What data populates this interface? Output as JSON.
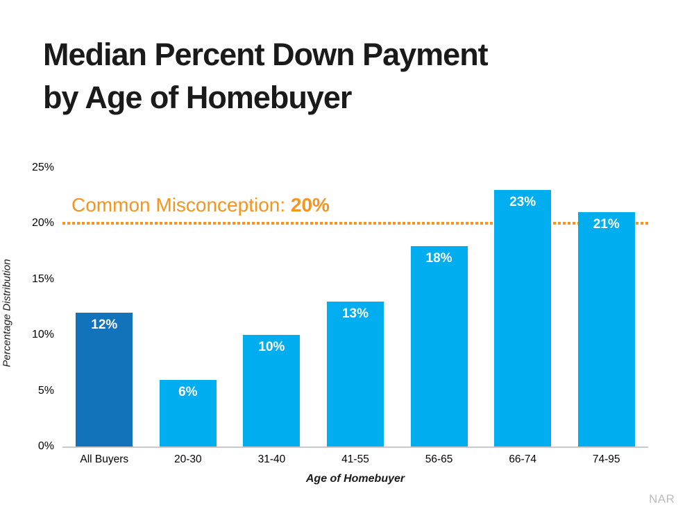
{
  "title_line1": "Median Percent Down Payment",
  "title_line2": "by Age of Homebuyer",
  "annotation": {
    "label": "Common Misconception: ",
    "value": "20%"
  },
  "source": "NAR",
  "colors": {
    "accent_orange": "#F7941D",
    "bar_light_blue": "#00AEEF",
    "bar_dark_blue": "#1272BA",
    "axis_gray": "#C9C9C9",
    "watermark_gray": "#BDBDBD"
  },
  "chart_data": {
    "type": "bar",
    "title": "Median Percent Down Payment by Age of Homebuyer",
    "categories": [
      "All Buyers",
      "20-30",
      "31-40",
      "41-55",
      "56-65",
      "66-74",
      "74-95"
    ],
    "values": [
      12,
      6,
      10,
      13,
      18,
      23,
      21
    ],
    "bar_labels": [
      "12%",
      "6%",
      "10%",
      "13%",
      "18%",
      "23%",
      "21%"
    ],
    "bar_colors": [
      "#1272BA",
      "#00AEEF",
      "#00AEEF",
      "#00AEEF",
      "#00AEEF",
      "#00AEEF",
      "#00AEEF"
    ],
    "xlabel": "Age of Homebuyer",
    "ylabel": "Percentage Distribution",
    "ylim": [
      0,
      25
    ],
    "ytick_values": [
      0,
      5,
      10,
      15,
      20,
      25
    ],
    "ytick_labels": [
      "0%",
      "5%",
      "10%",
      "15%",
      "20%",
      "25%"
    ],
    "grid": false,
    "legend": false,
    "reference_line": {
      "value": 20,
      "style": "dotted",
      "color": "#F7941D",
      "annotation": "Common Misconception: 20%"
    }
  }
}
